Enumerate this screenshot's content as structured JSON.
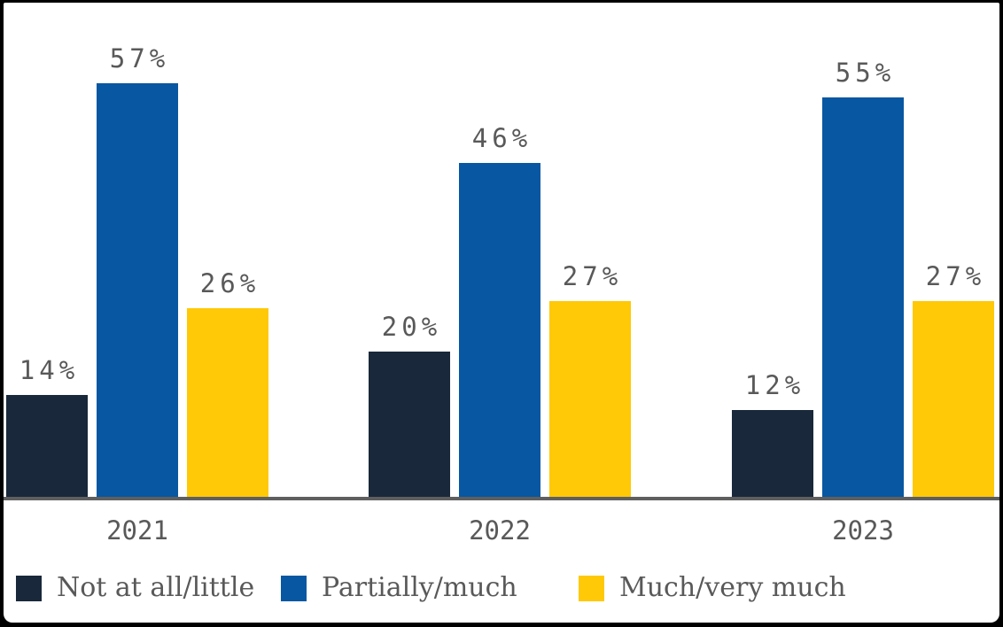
{
  "chart": {
    "background_color": "#ffffff",
    "frame_color": "#000000",
    "axis_line_color": "#5f5f5f",
    "text_color": "#595959"
  },
  "chart_data": {
    "type": "bar",
    "title": "",
    "xlabel": "",
    "ylabel": "",
    "categories": [
      "2021",
      "2022",
      "2023"
    ],
    "series": [
      {
        "name": "Not at all/little",
        "color": "#19283A",
        "values": [
          14,
          20,
          12
        ],
        "labels": [
          "14%",
          "20%",
          "12%"
        ]
      },
      {
        "name": "Partially/much",
        "color": "#0857A2",
        "values": [
          57,
          46,
          55
        ],
        "labels": [
          "57%",
          "46%",
          "55%"
        ]
      },
      {
        "name": "Much/very much",
        "color": "#FFC907",
        "values": [
          26,
          27,
          27
        ],
        "labels": [
          "26%",
          "27%",
          "27%"
        ]
      }
    ],
    "legend": [
      "Not at all/little",
      "Partially/much",
      "Much/very much"
    ],
    "legend_position": "bottom",
    "grid": false,
    "y_axis_visible": false,
    "ylim": [
      0,
      60
    ],
    "value_format": "percent"
  }
}
